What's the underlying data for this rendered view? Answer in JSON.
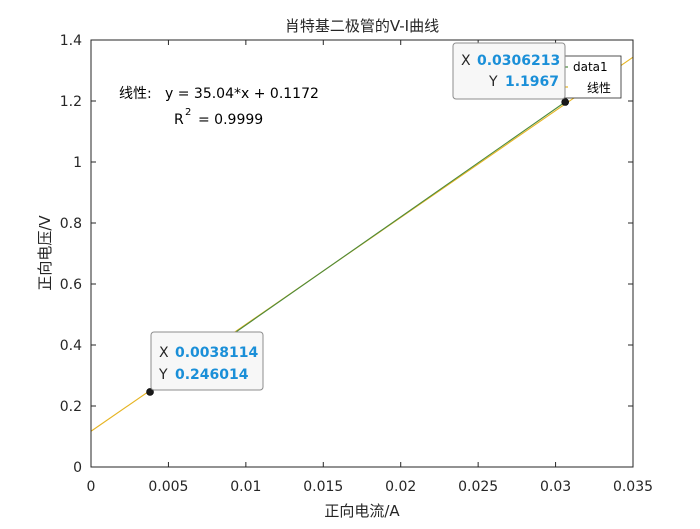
{
  "chart_data": {
    "type": "line",
    "title": "肖特基二极管的V-I曲线",
    "xlabel": "正向电流/A",
    "ylabel": "正向电压/V",
    "xlim": [
      0,
      0.035
    ],
    "ylim": [
      0,
      1.4
    ],
    "x_ticks": [
      "0",
      "0.005",
      "0.01",
      "0.015",
      "0.02",
      "0.025",
      "0.03",
      "0.035"
    ],
    "y_ticks": [
      "0",
      "0.2",
      "0.4",
      "0.6",
      "0.8",
      "1",
      "1.2",
      "1.4"
    ],
    "grid": false,
    "legend_position": "top-right",
    "series": [
      {
        "name": "data1",
        "color": "#4d8a3a",
        "x": [
          0.0038114,
          0.0306213
        ],
        "y": [
          0.246014,
          1.1967
        ]
      },
      {
        "name": "线性",
        "color": "#e6b422",
        "slope": 35.04,
        "intercept": 0.1172
      }
    ],
    "fit_annotation": {
      "label": "线性:",
      "equation": "y = 35.04*x + 0.1172",
      "r2_prefix": "R",
      "r2_sup": "2",
      "r2_value": "= 0.9999"
    },
    "datatips": [
      {
        "x_label": "X",
        "x_value": "0.0038114",
        "y_label": "Y",
        "y_value": "0.246014",
        "x": 0.0038114,
        "y": 0.246014
      },
      {
        "x_label": "X",
        "x_value": "0.0306213",
        "y_label": "Y",
        "y_value": "1.1967",
        "x": 0.0306213,
        "y": 1.1967
      }
    ],
    "colors": {
      "datatip_value": "#1a8fd8",
      "axis": "#262626"
    }
  }
}
